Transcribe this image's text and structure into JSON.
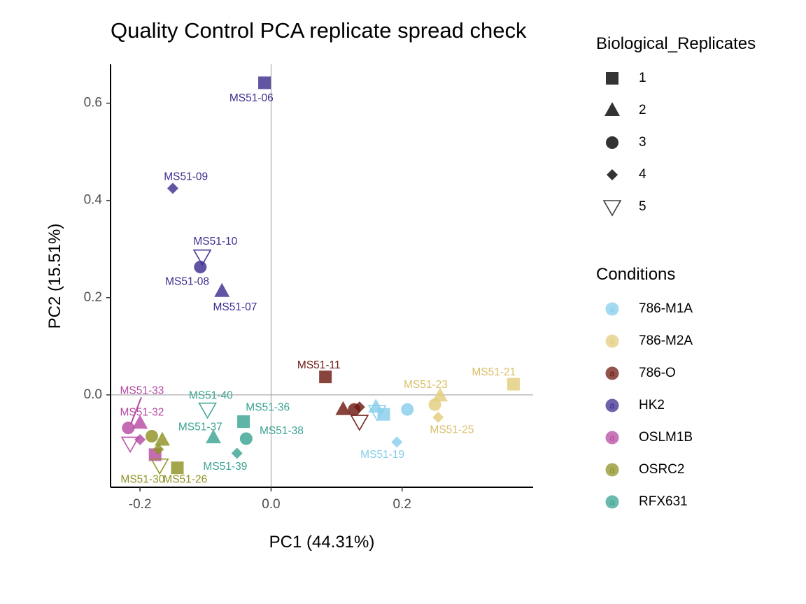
{
  "chart_data": {
    "type": "scatter",
    "title": "Quality Control PCA replicate spread check",
    "xlabel": "PC1 (44.31%)",
    "ylabel": "PC2 (15.51%)",
    "xlim": [
      -0.245,
      0.4
    ],
    "ylim": [
      -0.19,
      0.68
    ],
    "xticks": [
      -0.2,
      0.0,
      0.2
    ],
    "xtick_labels": [
      "-0.2",
      "0.0",
      "0.2"
    ],
    "yticks": [
      0.0,
      0.2,
      0.4,
      0.6
    ],
    "ytick_labels": [
      "0.0",
      "0.2",
      "0.4",
      "0.6"
    ],
    "grid": false,
    "reference_lines": {
      "x": 0,
      "y": 0
    },
    "legend_position": "right",
    "shape_legend": {
      "title": "Biological_Replicates",
      "items": [
        {
          "label": "1",
          "shape": "square"
        },
        {
          "label": "2",
          "shape": "triangle"
        },
        {
          "label": "3",
          "shape": "circle"
        },
        {
          "label": "4",
          "shape": "diamond"
        },
        {
          "label": "5",
          "shape": "triangle-down-open"
        }
      ]
    },
    "color_legend": {
      "title": "Conditions",
      "items": [
        {
          "label": "786-M1A",
          "color": "#87CEEB"
        },
        {
          "label": "786-M2A",
          "color": "#E3CD7E"
        },
        {
          "label": "786-O",
          "color": "#6E1A12"
        },
        {
          "label": "HK2",
          "color": "#3D2E8F"
        },
        {
          "label": "OSLM1B",
          "color": "#B64AA2"
        },
        {
          "label": "OSRC2",
          "color": "#8F9225"
        },
        {
          "label": "RFX631",
          "color": "#3AA392"
        }
      ]
    },
    "label_colors": {
      "786-M1A": "#87CEEB",
      "786-M2A": "#D9C06A",
      "786-O": "#6E1A12",
      "HK2": "#3D2E8F",
      "OSLM1B": "#B64AA2",
      "OSRC2": "#8F9225",
      "RFX631": "#3AA392"
    },
    "points": [
      {
        "x": -0.01,
        "y": 0.642,
        "condition": "HK2",
        "replicate": "1"
      },
      {
        "x": -0.075,
        "y": 0.213,
        "condition": "HK2",
        "replicate": "2"
      },
      {
        "x": -0.108,
        "y": 0.263,
        "condition": "HK2",
        "replicate": "3"
      },
      {
        "x": -0.15,
        "y": 0.425,
        "condition": "HK2",
        "replicate": "4"
      },
      {
        "x": -0.105,
        "y": 0.285,
        "condition": "HK2",
        "replicate": "5"
      },
      {
        "x": 0.083,
        "y": 0.037,
        "condition": "786-O",
        "replicate": "1"
      },
      {
        "x": 0.11,
        "y": -0.03,
        "condition": "786-O",
        "replicate": "2"
      },
      {
        "x": 0.127,
        "y": -0.03,
        "condition": "786-O",
        "replicate": "3"
      },
      {
        "x": 0.135,
        "y": -0.025,
        "condition": "786-O",
        "replicate": "4"
      },
      {
        "x": 0.135,
        "y": -0.055,
        "condition": "786-O",
        "replicate": "5"
      },
      {
        "x": 0.172,
        "y": -0.04,
        "condition": "786-M1A",
        "replicate": "1"
      },
      {
        "x": 0.16,
        "y": -0.025,
        "condition": "786-M1A",
        "replicate": "2"
      },
      {
        "x": 0.208,
        "y": -0.03,
        "condition": "786-M1A",
        "replicate": "3"
      },
      {
        "x": 0.192,
        "y": -0.097,
        "condition": "786-M1A",
        "replicate": "4"
      },
      {
        "x": 0.162,
        "y": -0.035,
        "condition": "786-M1A",
        "replicate": "5"
      },
      {
        "x": 0.37,
        "y": 0.022,
        "condition": "786-M2A",
        "replicate": "1"
      },
      {
        "x": 0.258,
        "y": -0.002,
        "condition": "786-M2A",
        "replicate": "2"
      },
      {
        "x": 0.25,
        "y": -0.02,
        "condition": "786-M2A",
        "replicate": "3"
      },
      {
        "x": 0.255,
        "y": -0.046,
        "condition": "786-M2A",
        "replicate": "4"
      },
      {
        "x": -0.177,
        "y": -0.123,
        "condition": "OSLM1B",
        "replicate": "1"
      },
      {
        "x": -0.2,
        "y": -0.058,
        "condition": "OSLM1B",
        "replicate": "2"
      },
      {
        "x": -0.218,
        "y": -0.068,
        "condition": "OSLM1B",
        "replicate": "3"
      },
      {
        "x": -0.2,
        "y": -0.092,
        "condition": "OSLM1B",
        "replicate": "4"
      },
      {
        "x": -0.215,
        "y": -0.1,
        "condition": "OSLM1B",
        "replicate": "5"
      },
      {
        "x": -0.143,
        "y": -0.15,
        "condition": "OSRC2",
        "replicate": "1"
      },
      {
        "x": -0.166,
        "y": -0.093,
        "condition": "OSRC2",
        "replicate": "2"
      },
      {
        "x": -0.182,
        "y": -0.085,
        "condition": "OSRC2",
        "replicate": "3"
      },
      {
        "x": -0.172,
        "y": -0.112,
        "condition": "OSRC2",
        "replicate": "4"
      },
      {
        "x": -0.17,
        "y": -0.145,
        "condition": "OSRC2",
        "replicate": "5"
      },
      {
        "x": -0.042,
        "y": -0.055,
        "condition": "RFX631",
        "replicate": "1"
      },
      {
        "x": -0.088,
        "y": -0.088,
        "condition": "RFX631",
        "replicate": "2"
      },
      {
        "x": -0.038,
        "y": -0.09,
        "condition": "RFX631",
        "replicate": "3"
      },
      {
        "x": -0.052,
        "y": -0.12,
        "condition": "RFX631",
        "replicate": "4"
      },
      {
        "x": -0.097,
        "y": -0.03,
        "condition": "RFX631",
        "replicate": "5"
      }
    ],
    "annotations": [
      {
        "text": "MS51-06",
        "x": -0.03,
        "y": 0.61,
        "condition": "HK2"
      },
      {
        "text": "MS51-09",
        "x": -0.13,
        "y": 0.448,
        "condition": "HK2"
      },
      {
        "text": "MS51-10",
        "x": -0.085,
        "y": 0.315,
        "condition": "HK2"
      },
      {
        "text": "MS51-08",
        "x": -0.128,
        "y": 0.232,
        "condition": "HK2"
      },
      {
        "text": "MS51-07",
        "x": -0.055,
        "y": 0.18,
        "condition": "HK2"
      },
      {
        "text": "MS51-11",
        "x": 0.073,
        "y": 0.06,
        "condition": "786-O"
      },
      {
        "text": "MS51-21",
        "x": 0.34,
        "y": 0.046,
        "condition": "786-M2A"
      },
      {
        "text": "MS51-23",
        "x": 0.236,
        "y": 0.02,
        "condition": "786-M2A"
      },
      {
        "text": "MS51-25",
        "x": 0.276,
        "y": -0.073,
        "condition": "786-M2A"
      },
      {
        "text": "MS51-19",
        "x": 0.17,
        "y": -0.124,
        "condition": "786-M1A"
      },
      {
        "text": "MS51-33",
        "x": -0.197,
        "y": 0.008,
        "condition": "OSLM1B"
      },
      {
        "text": "MS51-32",
        "x": -0.197,
        "y": -0.037,
        "condition": "OSLM1B"
      },
      {
        "text": "MS51-40",
        "x": -0.092,
        "y": -0.002,
        "condition": "RFX631"
      },
      {
        "text": "MS51-36",
        "x": -0.005,
        "y": -0.027,
        "condition": "RFX631"
      },
      {
        "text": "MS51-37",
        "x": -0.108,
        "y": -0.067,
        "condition": "RFX631"
      },
      {
        "text": "MS51-38",
        "x": 0.016,
        "y": -0.075,
        "condition": "RFX631"
      },
      {
        "text": "MS51-39",
        "x": -0.07,
        "y": -0.148,
        "condition": "RFX631"
      },
      {
        "text": "MS51-30",
        "x": -0.196,
        "y": -0.175,
        "condition": "OSRC2"
      },
      {
        "text": "MS51-26",
        "x": -0.131,
        "y": -0.175,
        "condition": "OSRC2"
      }
    ],
    "leader_lines": [
      {
        "x1": -0.198,
        "y1": -0.005,
        "x2": -0.214,
        "y2": -0.06,
        "condition": "OSLM1B"
      }
    ]
  }
}
